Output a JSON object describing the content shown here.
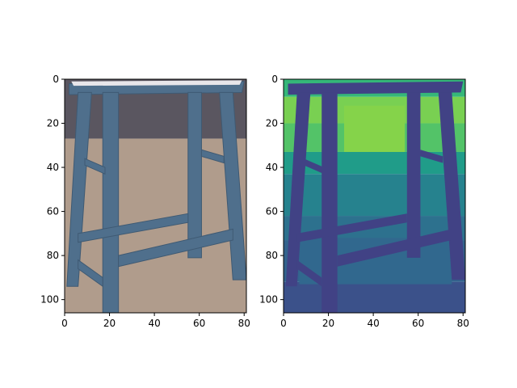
{
  "chart_data": [
    {
      "type": "image",
      "subtype": "rgb-photo",
      "subject": "stool",
      "xlim": [
        0,
        81
      ],
      "ylim": [
        106,
        0
      ],
      "xticks": [
        0,
        20,
        40,
        60,
        80
      ],
      "yticks": [
        0,
        20,
        40,
        60,
        80,
        100
      ],
      "colors": {
        "wall": "#5a5660",
        "floor": "#b09c8c",
        "stool": "#4f6f8c",
        "stool_dark": "#3f5a73",
        "seat_top": "#e8e6ea"
      }
    },
    {
      "type": "heatmap",
      "colormap": "viridis",
      "subject": "stool (single-channel / depth map)",
      "xlim": [
        0,
        81
      ],
      "ylim": [
        106,
        0
      ],
      "xticks": [
        0,
        20,
        40,
        60,
        80
      ],
      "yticks": [
        0,
        20,
        40,
        60,
        80,
        100
      ],
      "bands": [
        {
          "y": [
            0,
            8
          ],
          "value": 0.75
        },
        {
          "y": [
            8,
            20
          ],
          "value": 0.9
        },
        {
          "y": [
            20,
            33
          ],
          "value": 0.82
        },
        {
          "y": [
            33,
            43
          ],
          "value": 0.62
        },
        {
          "y": [
            43,
            62
          ],
          "value": 0.5
        },
        {
          "y": [
            62,
            73
          ],
          "value": 0.42
        },
        {
          "y": [
            73,
            92
          ],
          "value": 0.36
        },
        {
          "y": [
            92,
            106
          ],
          "value": 0.28
        }
      ],
      "stool_value": 0.22,
      "colors": {
        "v_low": "#3b528b",
        "v_mid_low": "#2c728e",
        "v_mid": "#21918c",
        "v_mid_high": "#28ae80",
        "v_high": "#5ec962",
        "v_top": "#a8db34"
      }
    }
  ]
}
